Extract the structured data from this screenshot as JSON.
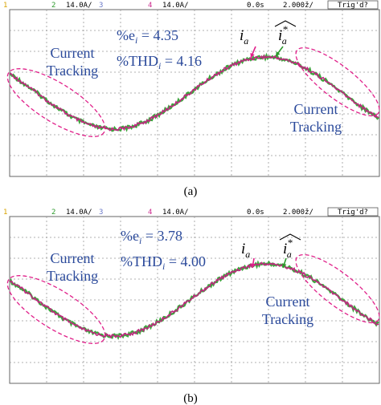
{
  "panels": [
    {
      "header": {
        "ch1": "1",
        "ch2": "2",
        "scale2": "14.0A/",
        "ch3": "3",
        "ch4": "4",
        "scale4": "14.0A/",
        "time": "0.0s",
        "timebase": "2.000ž/",
        "trigger": "Trig'd?"
      },
      "error": {
        "prefix": "%e",
        "sub": "i",
        "rest": " = 4.35"
      },
      "thd": {
        "prefix": "%THD",
        "sub": "i",
        "rest": " = 4.16"
      },
      "tracking_left": [
        "Current",
        "Tracking"
      ],
      "tracking_right": [
        "Current",
        "Tracking"
      ],
      "measured": {
        "base": "i",
        "sub": "a"
      },
      "reference": {
        "base": "i",
        "sup": "*",
        "sub": "a"
      },
      "caption": "(a)"
    },
    {
      "header": {
        "ch1": "1",
        "ch2": "2",
        "scale2": "14.0A/",
        "ch3": "3",
        "ch4": "4",
        "scale4": "14.0A/",
        "time": "0.0s",
        "timebase": "2.000ž/",
        "trigger": "Trig'd?"
      },
      "error": {
        "prefix": "%e",
        "sub": "i",
        "rest": " = 3.78"
      },
      "thd": {
        "prefix": "%THD",
        "sub": "i",
        "rest": " = 4.00"
      },
      "tracking_left": [
        "Current",
        "Tracking"
      ],
      "tracking_right": [
        "Current",
        "Tracking"
      ],
      "measured": {
        "base": "i",
        "sub": "a"
      },
      "reference": {
        "base": "i",
        "sup": "*",
        "sub": "a"
      },
      "caption": "(b)"
    }
  ]
}
